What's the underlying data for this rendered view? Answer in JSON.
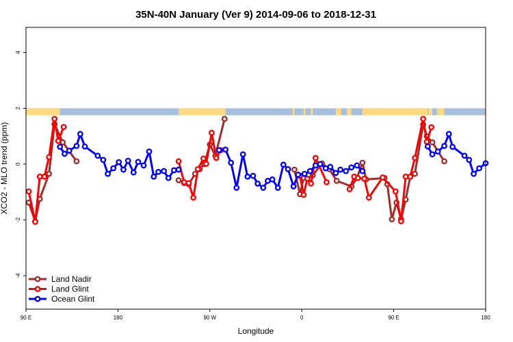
{
  "chart_data": {
    "type": "line",
    "title": "35N-40N January (Ver 9)   2014-09-06 to 2018-12-31",
    "xlabel": "Longitude",
    "ylabel": "XCO2 - MLO trend (ppm)",
    "xlim": [
      0,
      500
    ],
    "ylim": [
      -5.2,
      4.9
    ],
    "x_ticks": [
      {
        "value": 0,
        "label": "90 E"
      },
      {
        "value": 100,
        "label": "180"
      },
      {
        "value": 200,
        "label": "90 W"
      },
      {
        "value": 300,
        "label": "0"
      },
      {
        "value": 400,
        "label": "90 E"
      },
      {
        "value": 500,
        "label": "180"
      }
    ],
    "y_ticks": [
      {
        "value": -4,
        "label": "-4"
      },
      {
        "value": -2,
        "label": "-2"
      },
      {
        "value": 0,
        "label": "0"
      },
      {
        "value": 2,
        "label": "2"
      },
      {
        "value": 4,
        "label": "4"
      }
    ],
    "land_ocean_bar": {
      "y_bottom": 1.75,
      "y_top": 2.0,
      "ocean_color": "#a5bfdd",
      "land_color": "#fed980",
      "land_segments": [
        [
          0,
          37
        ],
        [
          166,
          217
        ],
        [
          290,
          292
        ],
        [
          302,
          304
        ],
        [
          310,
          312
        ],
        [
          337,
          343
        ],
        [
          349,
          354
        ],
        [
          366,
          437
        ],
        [
          438,
          442
        ],
        [
          447,
          455
        ]
      ]
    },
    "series": [
      {
        "name": "Land Nadir",
        "color": "#a52a2a",
        "points": [
          [
            3,
            -1.38
          ],
          [
            10,
            -2.05
          ],
          [
            15,
            -1.25
          ],
          [
            25,
            -0.35
          ],
          [
            31,
            1.43
          ],
          [
            40,
            0.78
          ],
          [
            55,
            0.1
          ],
          [
            166,
            -0.58
          ],
          [
            172,
            -0.68
          ],
          [
            177,
            -0.72
          ],
          [
            184,
            -0.35
          ],
          [
            189,
            -0.18
          ],
          [
            194,
            0.0
          ],
          [
            200,
            0.7
          ],
          [
            206,
            0.3
          ],
          [
            216,
            1.62
          ],
          [
            292,
            -0.2
          ],
          [
            298,
            -1.08
          ],
          [
            302,
            -0.5
          ],
          [
            306,
            -0.52
          ],
          [
            312,
            -0.4
          ],
          [
            322,
            0.02
          ],
          [
            330,
            -0.18
          ],
          [
            338,
            -0.6
          ],
          [
            354,
            -0.8
          ],
          [
            360,
            -0.5
          ],
          [
            366,
            0.05
          ],
          [
            370,
            -0.55
          ],
          [
            390,
            -0.5
          ],
          [
            393,
            -0.72
          ],
          [
            398,
            -1.98
          ],
          [
            403,
            -1.38
          ],
          [
            408,
            -1.97
          ],
          [
            413,
            -1.27
          ],
          [
            418,
            -0.45
          ],
          [
            423,
            -0.35
          ],
          [
            432,
            1.42
          ],
          [
            436,
            1.0
          ],
          [
            442,
            0.78
          ],
          [
            455,
            0.1
          ]
        ]
      },
      {
        "name": "Land Glint",
        "color": "#ff0000",
        "points": [
          [
            3,
            -0.98
          ],
          [
            10,
            -2.07
          ],
          [
            15,
            -0.45
          ],
          [
            20,
            -0.45
          ],
          [
            25,
            0.25
          ],
          [
            31,
            1.62
          ],
          [
            35,
            0.83
          ],
          [
            41,
            1.33
          ],
          [
            166,
            0.1
          ],
          [
            172,
            -0.65
          ],
          [
            177,
            -0.68
          ],
          [
            182,
            -1.2
          ],
          [
            187,
            -0.18
          ],
          [
            193,
            0.2
          ],
          [
            196,
            0.01
          ],
          [
            202,
            1.12
          ],
          [
            207,
            0.22
          ],
          [
            212,
            0.5
          ],
          [
            298,
            -0.42
          ],
          [
            302,
            -1.1
          ],
          [
            306,
            -0.52
          ],
          [
            310,
            -0.7
          ],
          [
            315,
            0.22
          ],
          [
            327,
            -0.65
          ],
          [
            352,
            -0.9
          ],
          [
            357,
            -0.45
          ],
          [
            361,
            -0.5
          ],
          [
            368,
            -0.52
          ],
          [
            373,
            -1.2
          ],
          [
            388,
            -0.48
          ],
          [
            402,
            -0.98
          ],
          [
            408,
            -2.05
          ],
          [
            413,
            -0.45
          ],
          [
            418,
            -0.45
          ],
          [
            423,
            0.22
          ],
          [
            432,
            1.62
          ],
          [
            436,
            0.8
          ],
          [
            441,
            1.32
          ]
        ]
      },
      {
        "name": "Ocean Glint",
        "color": "#0000ff",
        "points": [
          [
            37,
            0.62
          ],
          [
            42,
            0.37
          ],
          [
            47,
            0.48
          ],
          [
            55,
            0.65
          ],
          [
            59,
            1.08
          ],
          [
            64,
            0.63
          ],
          [
            78,
            0.3
          ],
          [
            84,
            0.15
          ],
          [
            89,
            -0.35
          ],
          [
            95,
            -0.15
          ],
          [
            101,
            0.07
          ],
          [
            106,
            -0.2
          ],
          [
            111,
            0.12
          ],
          [
            117,
            -0.3
          ],
          [
            122,
            0.08
          ],
          [
            128,
            -0.05
          ],
          [
            134,
            0.45
          ],
          [
            139,
            -0.45
          ],
          [
            144,
            -0.28
          ],
          [
            150,
            -0.25
          ],
          [
            155,
            -0.5
          ],
          [
            161,
            -0.22
          ],
          [
            166,
            -0.2
          ],
          [
            210,
            0.5
          ],
          [
            217,
            0.52
          ],
          [
            223,
            0.05
          ],
          [
            229,
            -0.85
          ],
          [
            236,
            0.35
          ],
          [
            241,
            -0.45
          ],
          [
            247,
            -0.42
          ],
          [
            252,
            -0.7
          ],
          [
            258,
            -0.85
          ],
          [
            263,
            -0.6
          ],
          [
            268,
            -0.55
          ],
          [
            274,
            -0.85
          ],
          [
            280,
            -0.02
          ],
          [
            285,
            -0.18
          ],
          [
            291,
            -0.8
          ],
          [
            296,
            -0.38
          ],
          [
            303,
            -0.35
          ],
          [
            309,
            -0.25
          ],
          [
            315,
            -0.05
          ],
          [
            320,
            0.0
          ],
          [
            326,
            -0.15
          ],
          [
            331,
            -0.1
          ],
          [
            337,
            -0.32
          ],
          [
            342,
            -0.2
          ],
          [
            348,
            -0.25
          ],
          [
            354,
            -0.12
          ],
          [
            360,
            -0.05
          ],
          [
            366,
            -0.25
          ],
          [
            437,
            0.63
          ],
          [
            442,
            0.35
          ],
          [
            448,
            0.45
          ],
          [
            455,
            0.65
          ],
          [
            460,
            1.08
          ],
          [
            464,
            0.62
          ],
          [
            477,
            0.3
          ],
          [
            482,
            0.15
          ],
          [
            487,
            -0.35
          ],
          [
            493,
            -0.15
          ],
          [
            500,
            0.03
          ]
        ]
      }
    ],
    "legend": {
      "position": "bottom-left",
      "entries": [
        "Land Nadir",
        "Land Glint",
        "Ocean Glint"
      ]
    }
  }
}
